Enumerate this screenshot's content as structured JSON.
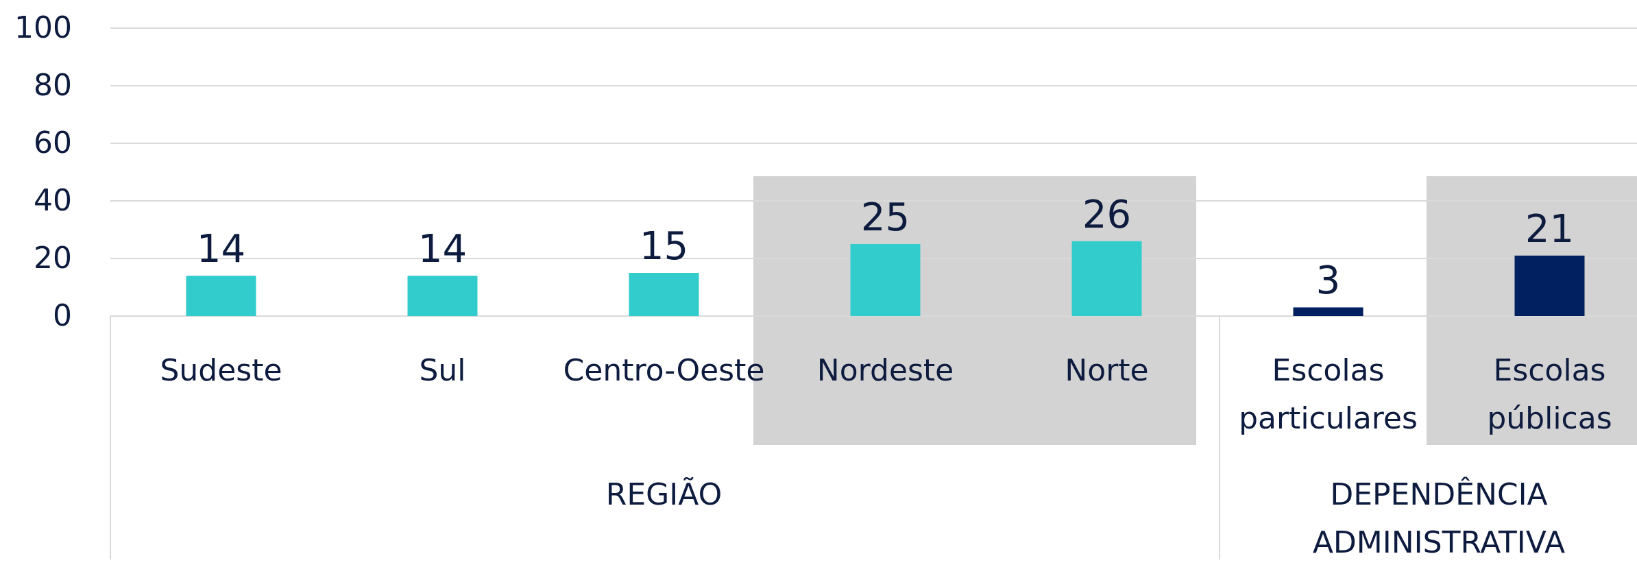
{
  "chart_data": {
    "type": "bar",
    "categories": [
      "Sudeste",
      "Sul",
      "Centro-Oeste",
      "Nordeste",
      "Norte",
      "Escolas particulares",
      "Escolas públicas"
    ],
    "values": [
      14,
      14,
      15,
      25,
      26,
      3,
      21
    ],
    "colors": [
      "#33cccc",
      "#33cccc",
      "#33cccc",
      "#33cccc",
      "#33cccc",
      "#002060",
      "#002060"
    ],
    "highlighted": [
      false,
      false,
      false,
      true,
      true,
      false,
      true
    ],
    "groups": [
      "REGIÃO",
      "DEPENDÊNCIA ADMINISTRATIVA"
    ],
    "ylim": [
      0,
      100
    ],
    "yticks": [
      0,
      20,
      40,
      60,
      80,
      100
    ],
    "grid": true
  }
}
